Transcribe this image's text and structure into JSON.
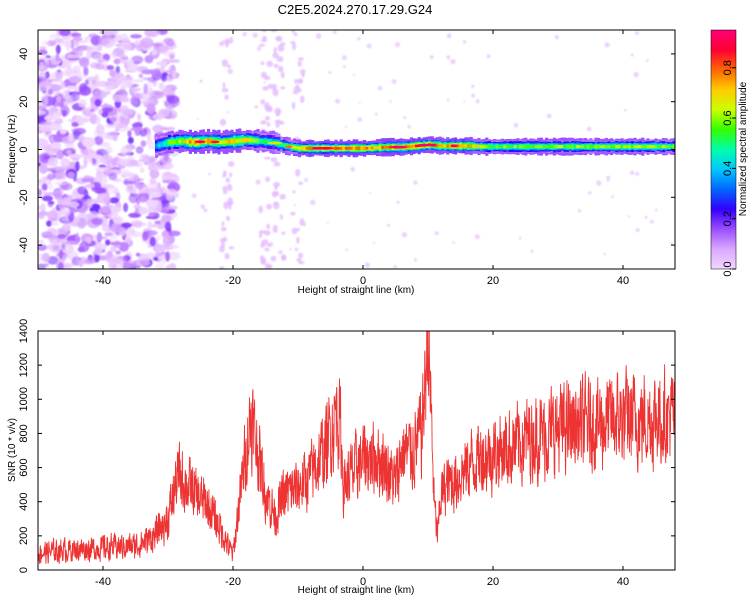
{
  "title": "C2E5.2024.270.17.29.G24",
  "chart_data": [
    {
      "type": "heatmap",
      "xlabel": "Height of straight line (km)",
      "ylabel": "Frequency (Hz)",
      "xlim": [
        -50,
        48
      ],
      "ylim": [
        -50,
        50
      ],
      "xticks": [
        -40,
        -20,
        0,
        20,
        40
      ],
      "yticks": [
        -40,
        -20,
        0,
        20,
        40
      ],
      "grid": false,
      "colorbar": {
        "label": "Normalized spectral amplitude",
        "range": [
          0,
          0.95
        ],
        "ticks": [
          "0.0",
          "0.2",
          "0.4",
          "0.6",
          "0.8"
        ],
        "colors": [
          "#f2d8ff",
          "#d9a8ff",
          "#9a4dff",
          "#3300ff",
          "#0066ff",
          "#00c8ff",
          "#00ffaa",
          "#33ff00",
          "#ccff00",
          "#ffcc00",
          "#ff6600",
          "#ff0033",
          "#ff0077"
        ]
      },
      "noise_region_x": [
        -50,
        -29
      ],
      "ridge": {
        "x": [
          -32,
          -30,
          -28,
          -26,
          -24,
          -22,
          -20,
          -18,
          -16,
          -14,
          -12,
          -10,
          -8,
          -6,
          -4,
          -2,
          0,
          2,
          4,
          6,
          8,
          10,
          12,
          14,
          16,
          18,
          20,
          25,
          30,
          35,
          40,
          45,
          48
        ],
        "y": [
          1.5,
          3,
          3.5,
          3,
          3.5,
          3,
          3.5,
          4,
          3.5,
          3,
          1.5,
          0.5,
          0.5,
          0.5,
          0.5,
          0.5,
          0.5,
          0.8,
          1,
          1,
          1.5,
          2,
          1.5,
          1.5,
          1.5,
          1.2,
          1.2,
          1.2,
          1.2,
          1.2,
          1.2,
          1.2,
          1.2
        ],
        "amplitude": [
          0.4,
          0.6,
          0.7,
          0.8,
          0.75,
          0.7,
          0.75,
          0.7,
          0.55,
          0.5,
          0.6,
          0.75,
          0.8,
          0.75,
          0.8,
          0.85,
          0.8,
          0.75,
          0.85,
          0.8,
          0.85,
          0.8,
          0.75,
          0.85,
          0.8,
          0.65,
          0.6,
          0.6,
          0.62,
          0.62,
          0.65,
          0.62,
          0.6
        ]
      }
    },
    {
      "type": "line",
      "xlabel": "Height of straight line (km)",
      "ylabel": "SNR (10 * v/v)",
      "xlim": [
        -50,
        48
      ],
      "ylim": [
        0,
        1400
      ],
      "xticks": [
        -40,
        -20,
        0,
        20,
        40
      ],
      "yticks": [
        0,
        200,
        400,
        600,
        800,
        1000,
        1200,
        1400
      ],
      "color": "#ee3333",
      "grid": false,
      "series": [
        {
          "x": [
            -50,
            -45,
            -40,
            -35,
            -32,
            -30,
            -28.5,
            -27.5,
            -26,
            -24,
            -22,
            -20.5,
            -20,
            -19,
            -18,
            -17.2,
            -16.5,
            -15,
            -13.5,
            -12,
            -10,
            -8,
            -6,
            -5,
            -4,
            -3.5,
            -3,
            -2,
            0,
            2,
            4,
            5,
            6,
            7,
            8,
            9,
            9.5,
            10,
            10.5,
            11,
            11.5,
            12,
            13,
            15,
            17,
            20,
            25,
            30,
            35,
            40,
            45,
            48
          ],
          "y": [
            100,
            120,
            130,
            140,
            200,
            300,
            550,
            520,
            450,
            380,
            250,
            120,
            90,
            400,
            700,
            900,
            750,
            450,
            320,
            450,
            480,
            560,
            700,
            800,
            950,
            850,
            500,
            550,
            650,
            680,
            580,
            500,
            700,
            680,
            720,
            800,
            1050,
            1400,
            900,
            350,
            200,
            450,
            500,
            560,
            640,
            680,
            760,
            820,
            860,
            880,
            890,
            900
          ]
        }
      ]
    }
  ]
}
